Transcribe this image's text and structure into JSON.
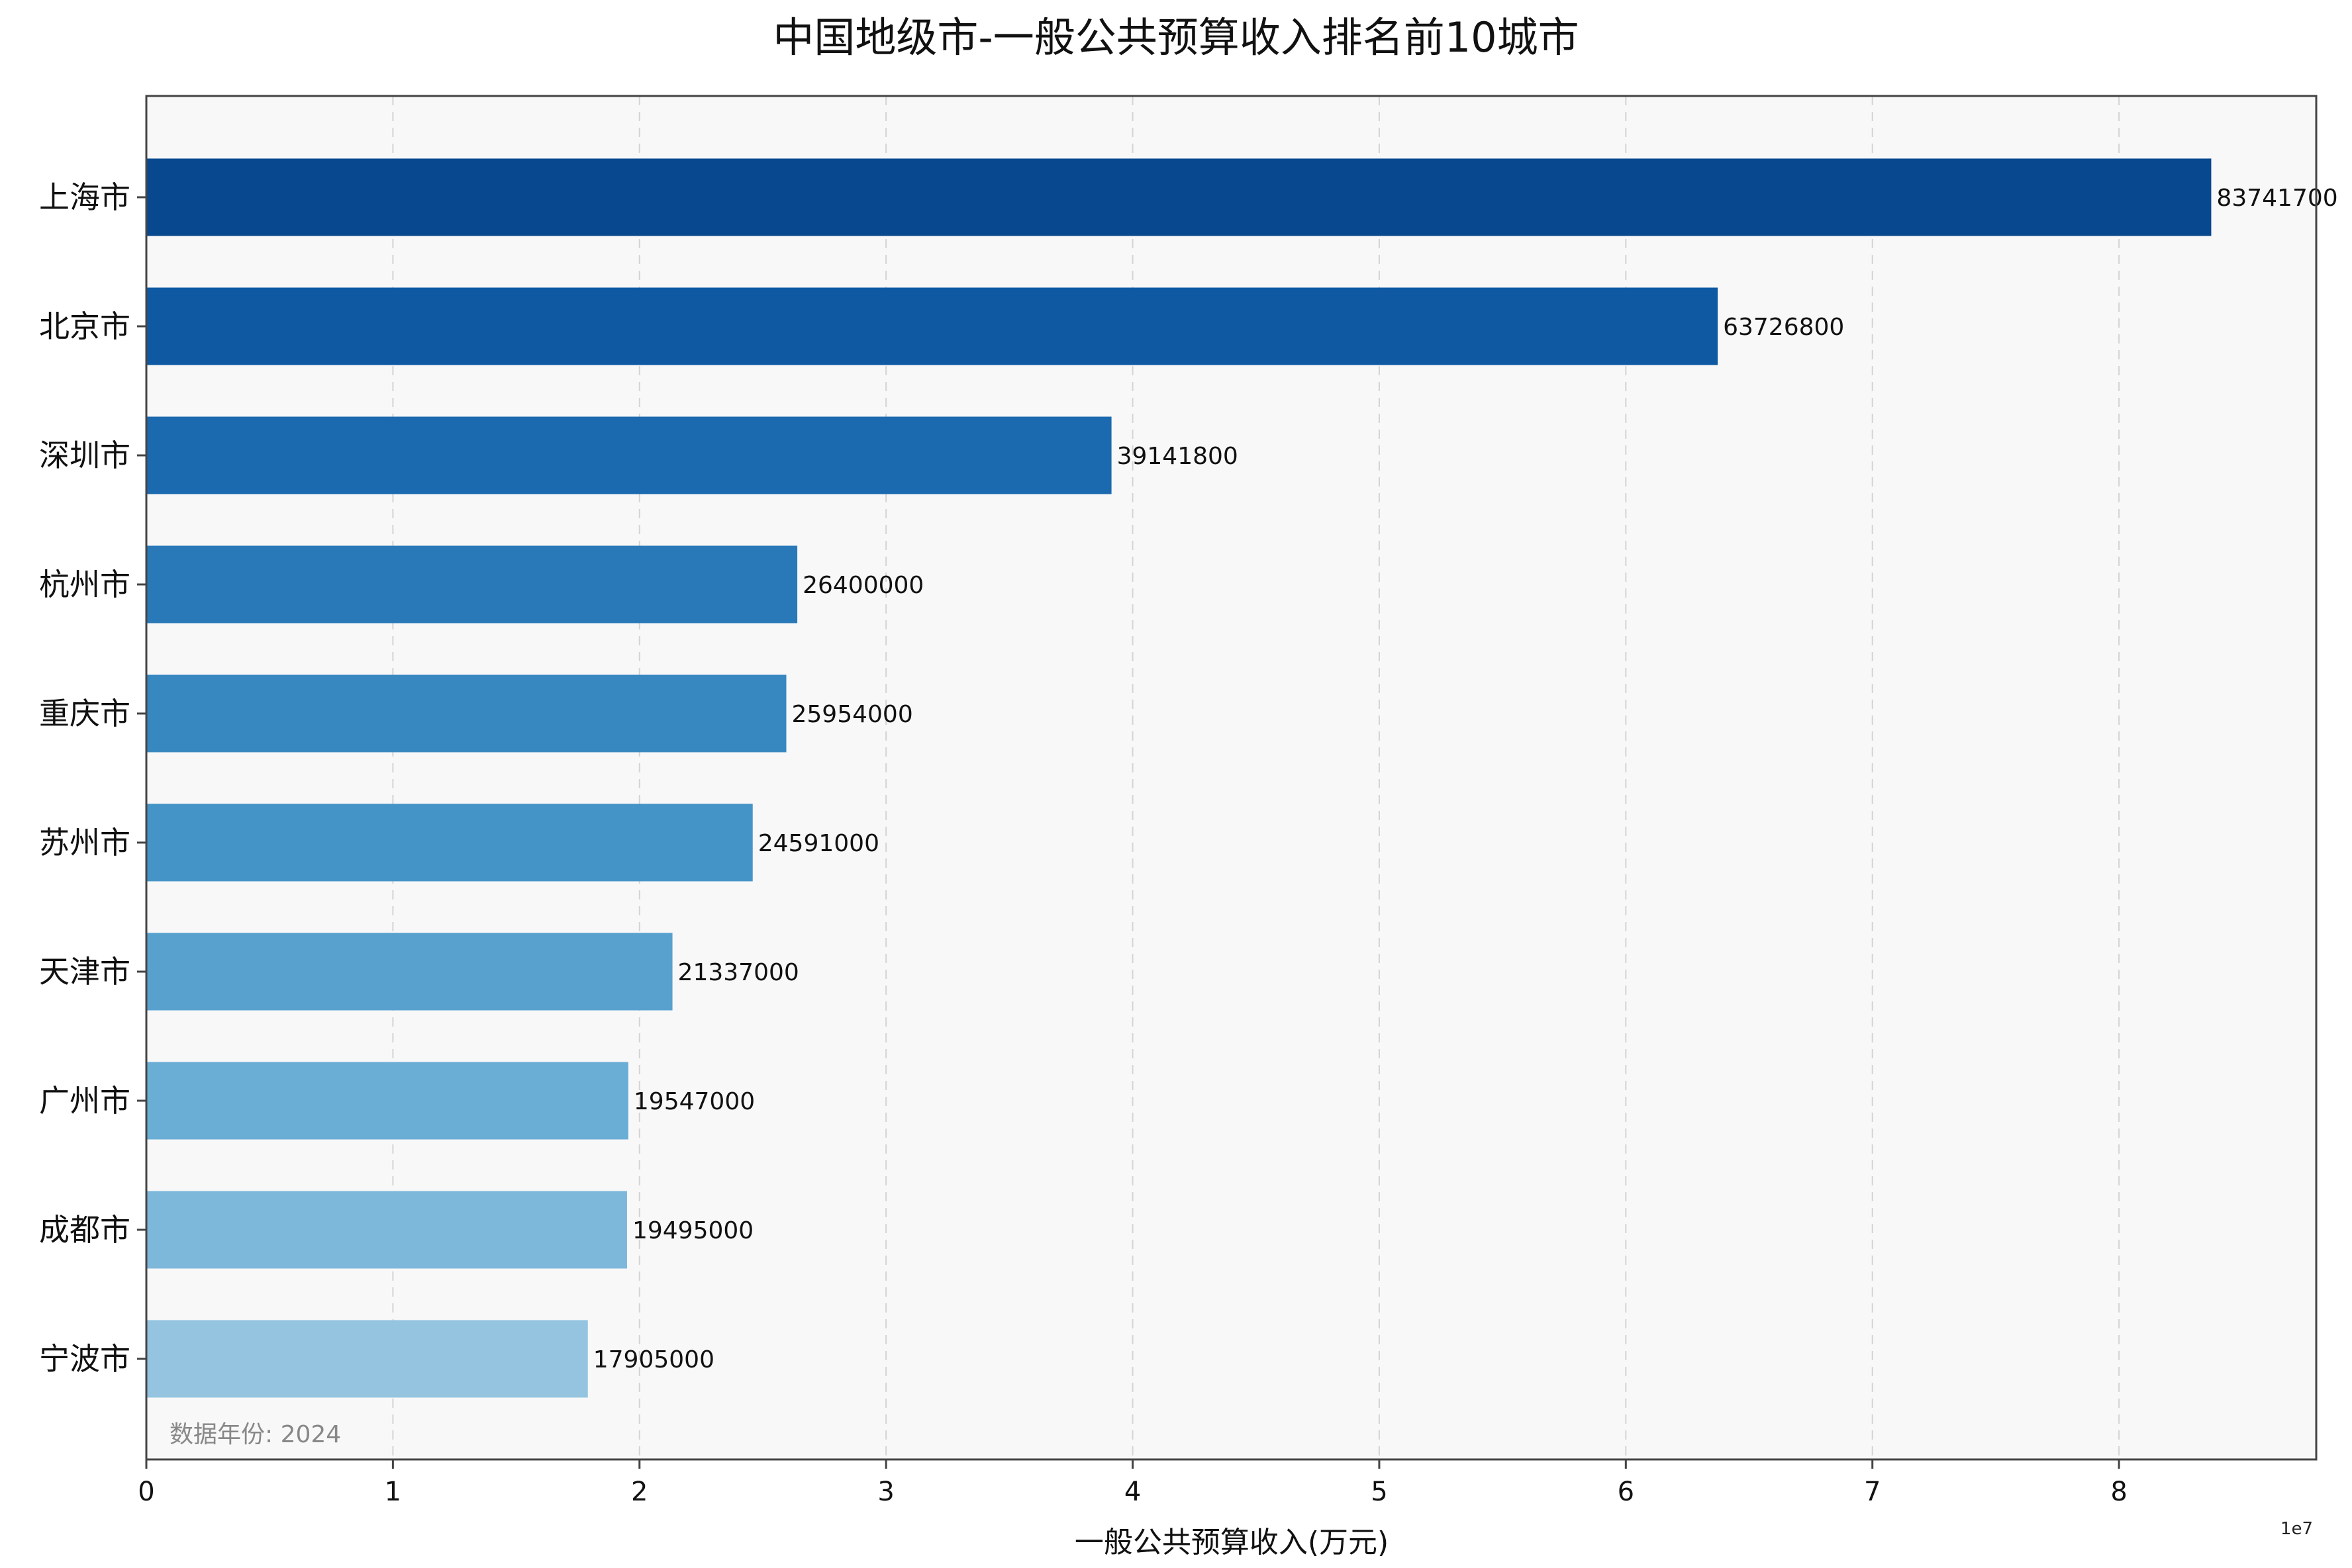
{
  "chart_data": {
    "type": "bar",
    "orientation": "horizontal",
    "title": "中国地级市-一般公共预算收入排名前10城市",
    "xlabel": "一般公共预算收入(万元)",
    "ylabel": "",
    "x_scale_label": "1e7",
    "x_ticks": [
      0,
      1,
      2,
      3,
      4,
      5,
      6,
      7,
      8
    ],
    "xlim": [
      0,
      8.8
    ],
    "x_scale": 10000000,
    "grid": "x-dashed",
    "background": "#f8f8f8",
    "note": "数据年份: 2024",
    "categories": [
      "上海市",
      "北京市",
      "深圳市",
      "杭州市",
      "重庆市",
      "苏州市",
      "天津市",
      "广州市",
      "成都市",
      "宁波市"
    ],
    "values": [
      83741700,
      63726800,
      39141800,
      26400000,
      25954000,
      24591000,
      21337000,
      19547000,
      19495000,
      17905000
    ],
    "colors": [
      "#08488e",
      "#0f59a3",
      "#1b69af",
      "#2979b9",
      "#3787c0",
      "#4594c7",
      "#58a1cf",
      "#6aaed6",
      "#7db8da",
      "#94c4df"
    ]
  }
}
